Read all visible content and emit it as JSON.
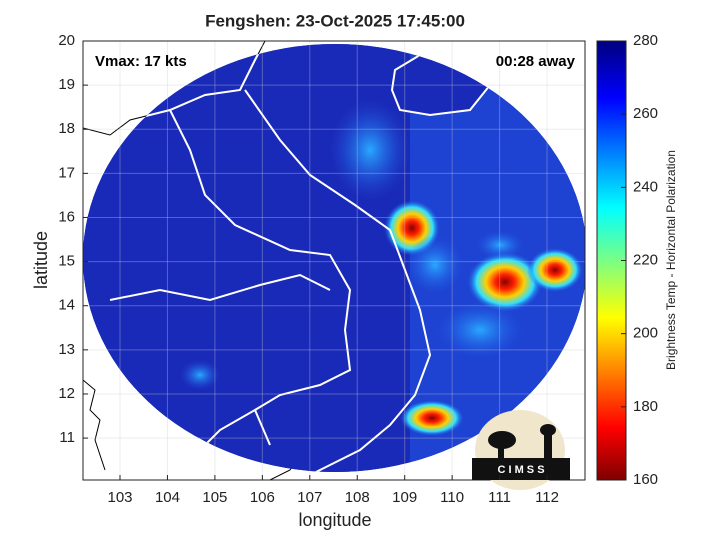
{
  "chart_data": {
    "type": "image-map",
    "title": "Fengshen: 23-Oct-2025 17:45:00",
    "annotations": [
      "Vmax: 17 kts",
      "00:28 away"
    ],
    "x_label": "longitude",
    "y_label": "latitude",
    "xlim": [
      102.22,
      112.8
    ],
    "xticks": [
      103,
      104,
      105,
      106,
      107,
      108,
      109,
      110,
      111,
      112
    ],
    "ylim": [
      10.05,
      20
    ],
    "yticks": [
      11,
      12,
      13,
      14,
      15,
      16,
      17,
      18,
      19,
      20
    ],
    "grid": true,
    "colorbar": {
      "label": "Brightness Temp - Horizontal Polarization",
      "clim": [
        160,
        280
      ],
      "ticks": [
        160,
        180,
        200,
        220,
        240,
        260,
        280
      ]
    },
    "logo": "C I M S S"
  }
}
